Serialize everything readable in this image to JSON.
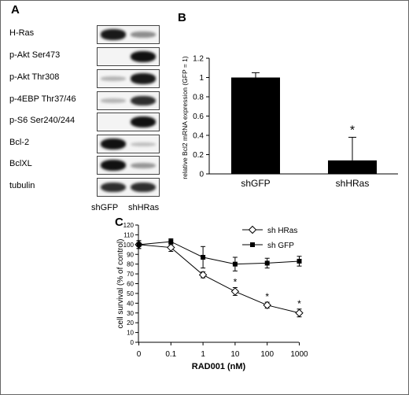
{
  "panel_a": {
    "letter": "A",
    "blots": [
      {
        "label": "H-Ras",
        "gfp": 0.95,
        "hras": 0.35
      },
      {
        "label": "p-Akt Ser473",
        "gfp": 0.0,
        "hras": 1.0
      },
      {
        "label": "p-Akt Thr308",
        "gfp": 0.15,
        "hras": 0.95
      },
      {
        "label": "p-4EBP Thr37/46",
        "gfp": 0.15,
        "hras": 0.85
      },
      {
        "label": "p-S6 Ser240/244",
        "gfp": 0.0,
        "hras": 1.0
      },
      {
        "label": "Bcl-2",
        "gfp": 1.0,
        "hras": 0.1
      },
      {
        "label": "BclXL",
        "gfp": 1.0,
        "hras": 0.3
      },
      {
        "label": "tubulin",
        "gfp": 0.85,
        "hras": 0.85
      }
    ],
    "lanes": [
      "shGFP",
      "shHRas"
    ]
  },
  "panel_b": {
    "letter": "B",
    "asterisk": "*",
    "chart_data": {
      "type": "bar",
      "categories": [
        "shGFP",
        "shHRas"
      ],
      "values": [
        1.0,
        0.14
      ],
      "error": [
        0.05,
        0.24
      ],
      "ylabel": "relative Bcl2 mRNA expression (GFP = 1)",
      "ylim": [
        0,
        1.2
      ],
      "yticks": [
        "0",
        "0.2",
        "0.4",
        "0.6",
        "0.8",
        "1",
        "1.2"
      ],
      "bar_color": "#000000",
      "significance": [
        "",
        "*"
      ]
    }
  },
  "panel_c": {
    "letter": "C",
    "chart_data": {
      "type": "line",
      "x_labels": [
        "0",
        "0.1",
        "1",
        "10",
        "100",
        "1000"
      ],
      "xlabel": "RAD001 (nM)",
      "ylabel": "cell survival (% of control)",
      "ylim": [
        0,
        120
      ],
      "yticks": [
        "0",
        "10",
        "20",
        "30",
        "40",
        "50",
        "60",
        "70",
        "80",
        "90",
        "100",
        "110",
        "120"
      ],
      "series": [
        {
          "name": "sh HRas",
          "marker": "diamond-open",
          "values": [
            100,
            97,
            69,
            52,
            38,
            30
          ],
          "error": [
            4,
            4,
            3,
            4,
            3,
            4
          ],
          "significance": [
            "",
            "",
            "",
            "*",
            "*",
            "*"
          ]
        },
        {
          "name": "sh GFP",
          "marker": "square-filled",
          "values": [
            100,
            103,
            87,
            80,
            81,
            83
          ],
          "error": [
            4,
            3,
            11,
            7,
            5,
            5
          ],
          "significance": [
            "",
            "",
            "",
            "",
            "",
            ""
          ]
        }
      ],
      "legend_position": "top-right"
    }
  }
}
